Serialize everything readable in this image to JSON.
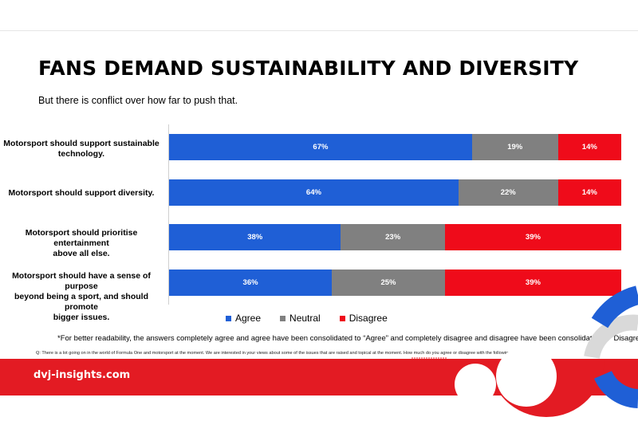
{
  "title": "FANS DEMAND SUSTAINABILITY AND DIVERSITY",
  "subtitle": "But there is conflict over how far to push that.",
  "footnote": "*For better readability, the answers completely agree and agree have been consolidated to “Agree” and completely disagree and disagree have been consolidated to “Disagree”.",
  "question": "Q: There is a lot going on in the world of Formula One and motorsport at the moment.  We are interested in your views about some of the issues that are raised and topical at the moment. How much do you agree or disagree with the following statements?",
  "brand": "dvj-insights.com",
  "colors": {
    "agree": "#1f5fd6",
    "neutral": "#808080",
    "disagree": "#ef0b1a",
    "brand_red": "#e31b23"
  },
  "chart_data": {
    "type": "bar",
    "orientation": "horizontal",
    "stacked": true,
    "categories": [
      "Motorsport should support sustainable\ntechnology.",
      "Motorsport should support diversity.",
      "Motorsport should prioritise entertainment\nabove all else.",
      "Motorsport should have a sense of purpose\nbeyond being a sport, and should promote\nbigger issues."
    ],
    "series": [
      {
        "name": "Agree",
        "values": [
          67,
          64,
          38,
          36
        ],
        "labels": [
          "67%",
          "64%",
          "38%",
          "36%"
        ]
      },
      {
        "name": "Neutral",
        "values": [
          19,
          22,
          23,
          25
        ],
        "labels": [
          "19%",
          "22%",
          "23%",
          "25%"
        ]
      },
      {
        "name": "Disagree",
        "values": [
          14,
          14,
          39,
          39
        ],
        "labels": [
          "14%",
          "14%",
          "39%",
          "39%"
        ]
      }
    ],
    "xlim": [
      0,
      100
    ],
    "legend": "bottom",
    "grid": false
  }
}
